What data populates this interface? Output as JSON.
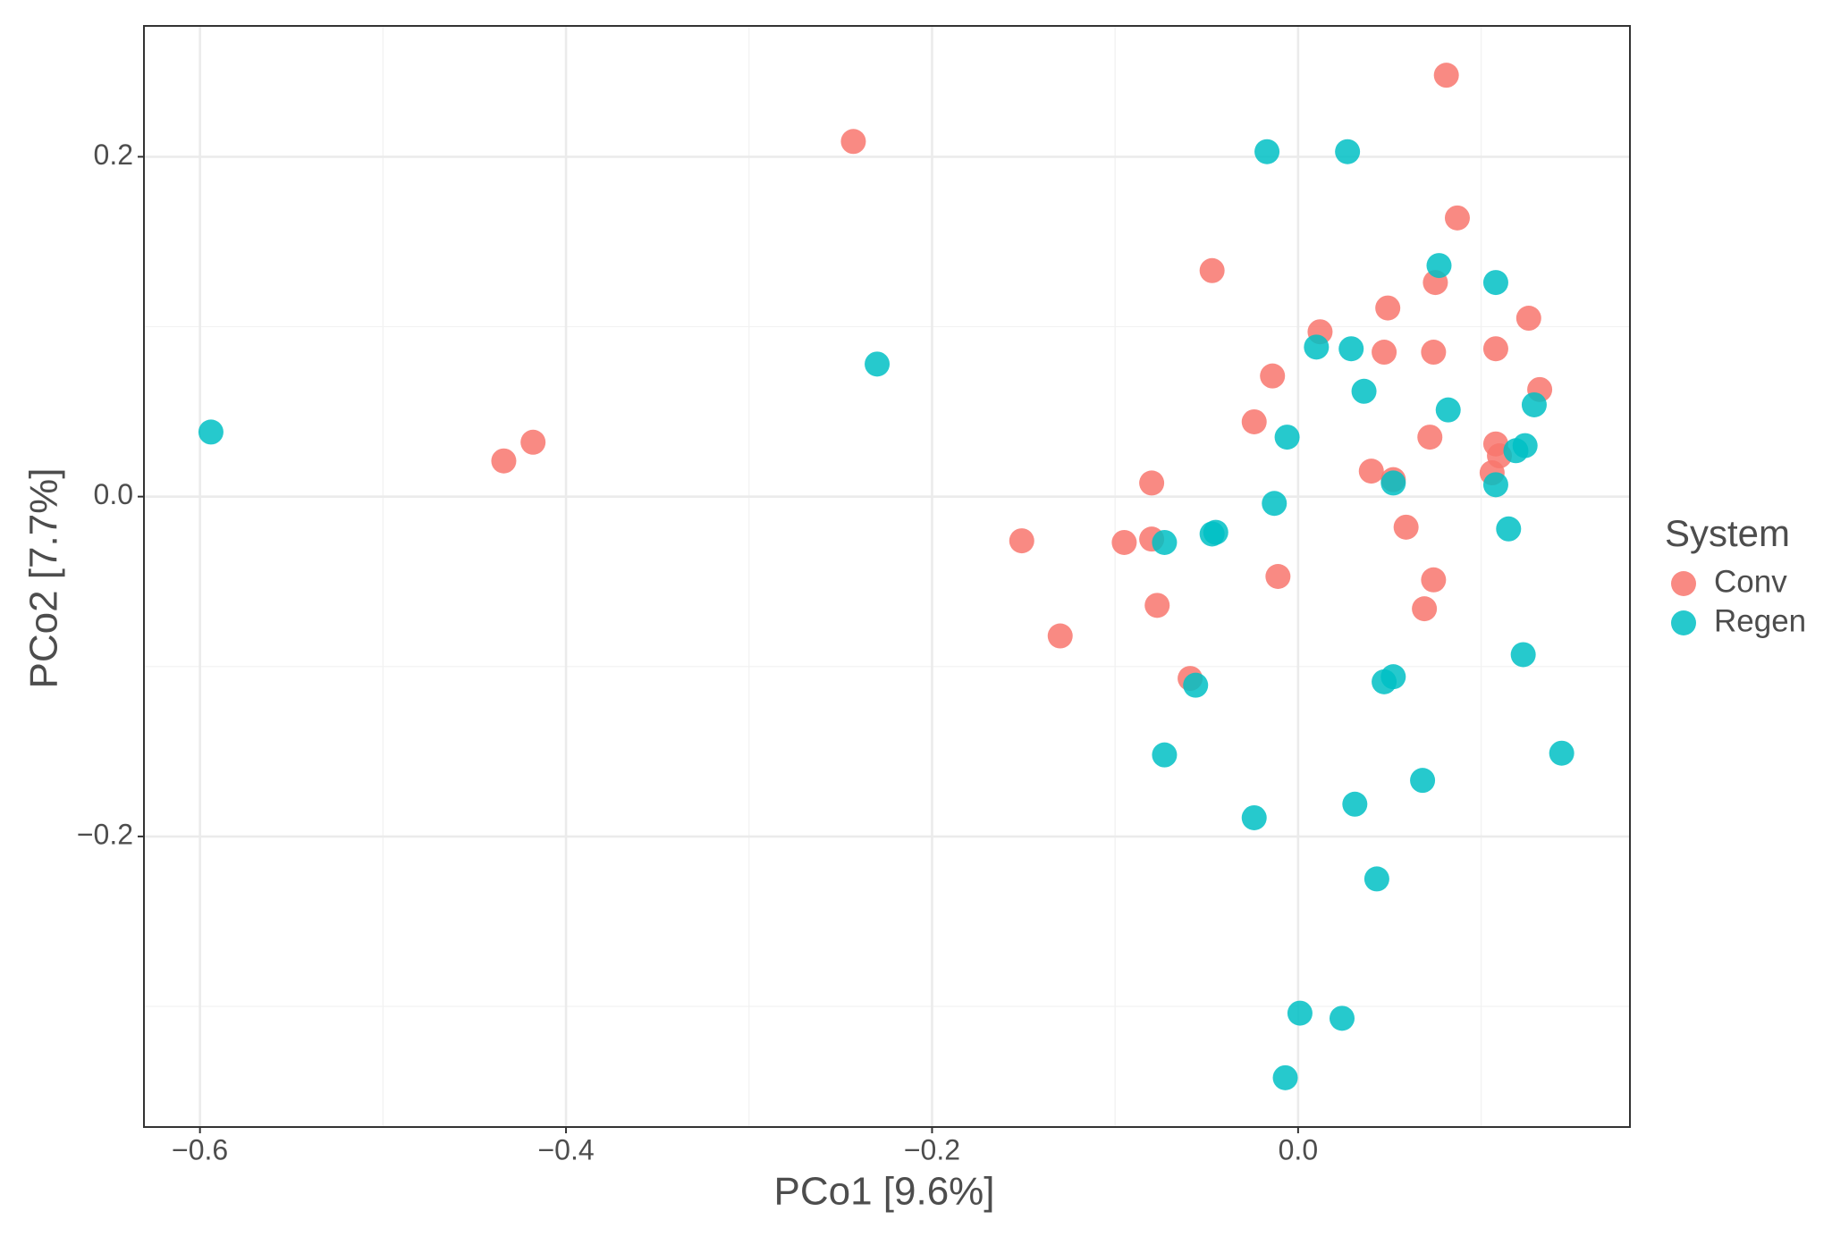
{
  "chart_data": {
    "type": "scatter",
    "xlabel": "PCo1 [9.6%]",
    "ylabel": "PCo2 [7.7%]",
    "legend_title": "System",
    "legend": "right",
    "grid": true,
    "xlim": [
      -0.6306,
      0.1813
    ],
    "ylim": [
      -0.371,
      0.277
    ],
    "xticks": [
      {
        "value": -0.6,
        "label": "−0.6"
      },
      {
        "value": -0.4,
        "label": "−0.4"
      },
      {
        "value": -0.2,
        "label": "−0.2"
      },
      {
        "value": 0,
        "label": "0.0"
      }
    ],
    "yticks": [
      {
        "value": -0.2,
        "label": "−0.2"
      },
      {
        "value": 0,
        "label": "0.0"
      },
      0.2
    ],
    "series": [
      {
        "name": "Conv",
        "color": "#F8766D",
        "x": [
          0.081,
          -0.243,
          0.087,
          -0.047,
          0.075,
          0.049,
          0.126,
          0.012,
          0.047,
          0.074,
          0.108,
          -0.014,
          0.132,
          -0.024,
          0.072,
          -0.418,
          -0.434,
          0.108,
          0.11,
          0.106,
          0.04,
          0.052,
          -0.08,
          0.059,
          -0.151,
          -0.095,
          -0.08,
          -0.011,
          0.074,
          -0.077,
          0.069,
          -0.13,
          -0.059
        ],
        "y": [
          0.248,
          0.209,
          0.164,
          0.133,
          0.126,
          0.111,
          0.105,
          0.097,
          0.085,
          0.085,
          0.087,
          0.071,
          0.063,
          0.044,
          0.035,
          0.032,
          0.021,
          0.031,
          0.024,
          0.014,
          0.015,
          0.01,
          0.008,
          -0.018,
          -0.026,
          -0.027,
          -0.025,
          -0.047,
          -0.049,
          -0.064,
          -0.066,
          -0.082,
          -0.107
        ]
      },
      {
        "name": "Regen",
        "color": "#00BFC4",
        "x": [
          -0.017,
          0.027,
          0.077,
          0.108,
          0.01,
          0.029,
          -0.23,
          0.036,
          0.082,
          0.129,
          -0.594,
          -0.006,
          0.124,
          0.119,
          0.052,
          0.108,
          -0.013,
          -0.045,
          -0.047,
          0.115,
          -0.073,
          0.123,
          0.052,
          0.047,
          -0.056,
          -0.073,
          0.144,
          0.068,
          0.031,
          -0.024,
          0.043,
          0.001,
          0.024,
          -0.007
        ],
        "y": [
          0.203,
          0.203,
          0.136,
          0.126,
          0.088,
          0.087,
          0.078,
          0.062,
          0.051,
          0.054,
          0.038,
          0.035,
          0.03,
          0.027,
          0.008,
          0.007,
          -0.004,
          -0.021,
          -0.022,
          -0.019,
          -0.027,
          -0.093,
          -0.106,
          -0.109,
          -0.111,
          -0.152,
          -0.151,
          -0.167,
          -0.181,
          -0.189,
          -0.225,
          -0.304,
          -0.307,
          -0.342
        ]
      }
    ]
  }
}
